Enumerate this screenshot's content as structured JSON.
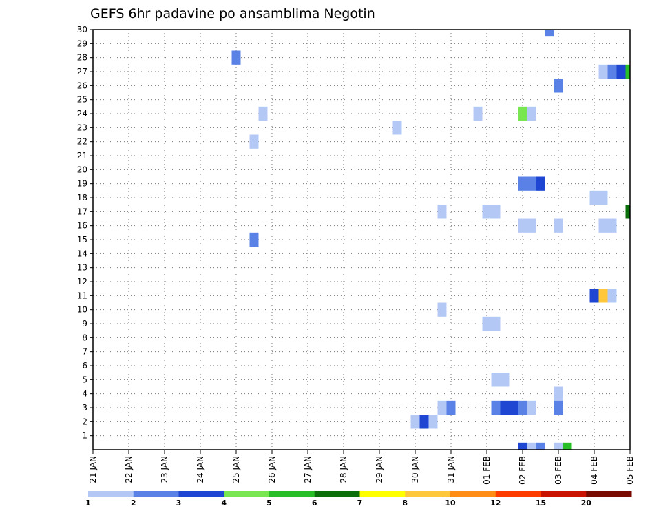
{
  "chart_data": {
    "type": "heatmap",
    "title": "GEFS 6hr padavine po ansamblima Negotin",
    "x_tick_labels": [
      "21 JAN",
      "22 JAN",
      "23 JAN",
      "24 JAN",
      "25 JAN",
      "26 JAN",
      "27 JAN",
      "28 JAN",
      "29 JAN",
      "30 JAN",
      "31 JAN",
      "01 FEB",
      "02 FEB",
      "03 FEB",
      "04 FEB",
      "05 FEB"
    ],
    "y_tick_labels": [
      "1",
      "2",
      "3",
      "4",
      "5",
      "6",
      "7",
      "8",
      "9",
      "10",
      "11",
      "12",
      "13",
      "14",
      "15",
      "16",
      "17",
      "18",
      "19",
      "20",
      "21",
      "22",
      "23",
      "24",
      "25",
      "26",
      "27",
      "28",
      "29",
      "30"
    ],
    "x_range_days": [
      0,
      15
    ],
    "y_range": [
      0,
      30
    ],
    "time_step_hours": 6,
    "grid": "dotted",
    "colorbar": {
      "bounds": [
        "1",
        "2",
        "3",
        "4",
        "5",
        "6",
        "7",
        "8",
        "10",
        "12",
        "15",
        "20"
      ],
      "colors": [
        "#b4c8f5",
        "#5a82e6",
        "#1e46d2",
        "#78e650",
        "#28be28",
        "#0a6e0a",
        "#ffff00",
        "#ffc83c",
        "#ff8c14",
        "#ff3c00",
        "#c81400",
        "#780a00"
      ]
    },
    "cells": [
      {
        "time": "25 JAN 00Z",
        "member": 28,
        "bin": 1
      },
      {
        "time": "25 JAN 12Z",
        "member": 22,
        "bin": 0
      },
      {
        "time": "25 JAN 12Z",
        "member": 15,
        "bin": 1
      },
      {
        "time": "25 JAN 18Z",
        "member": 24,
        "bin": 0
      },
      {
        "time": "29 JAN 12Z",
        "member": 23,
        "bin": 0
      },
      {
        "time": "30 JAN 00Z",
        "member": 2,
        "bin": 0
      },
      {
        "time": "30 JAN 06Z",
        "member": 2,
        "bin": 2
      },
      {
        "time": "30 JAN 12Z",
        "member": 2,
        "bin": 0
      },
      {
        "time": "30 JAN 18Z",
        "member": 17,
        "bin": 0
      },
      {
        "time": "30 JAN 18Z",
        "member": 10,
        "bin": 0
      },
      {
        "time": "30 JAN 18Z",
        "member": 3,
        "bin": 0
      },
      {
        "time": "31 JAN 00Z",
        "member": 3,
        "bin": 1
      },
      {
        "time": "31 JAN 18Z",
        "member": 24,
        "bin": 0
      },
      {
        "time": "01 FEB 00Z",
        "member": 17,
        "bin": 0
      },
      {
        "time": "01 FEB 00Z",
        "member": 9,
        "bin": 0
      },
      {
        "time": "01 FEB 06Z",
        "member": 17,
        "bin": 0
      },
      {
        "time": "01 FEB 06Z",
        "member": 9,
        "bin": 0
      },
      {
        "time": "01 FEB 06Z",
        "member": 5,
        "bin": 0
      },
      {
        "time": "01 FEB 06Z",
        "member": 3,
        "bin": 1
      },
      {
        "time": "01 FEB 12Z",
        "member": 5,
        "bin": 0
      },
      {
        "time": "01 FEB 12Z",
        "member": 3,
        "bin": 2
      },
      {
        "time": "01 FEB 18Z",
        "member": 3,
        "bin": 2
      },
      {
        "time": "02 FEB 00Z",
        "member": 24,
        "bin": 3
      },
      {
        "time": "02 FEB 00Z",
        "member": 19,
        "bin": 1
      },
      {
        "time": "02 FEB 00Z",
        "member": 16,
        "bin": 0
      },
      {
        "time": "02 FEB 00Z",
        "member": 3,
        "bin": 1
      },
      {
        "time": "02 FEB 00Z",
        "member": 0,
        "bin": 2
      },
      {
        "time": "02 FEB 06Z",
        "member": 24,
        "bin": 0
      },
      {
        "time": "02 FEB 06Z",
        "member": 19,
        "bin": 1
      },
      {
        "time": "02 FEB 06Z",
        "member": 16,
        "bin": 0
      },
      {
        "time": "02 FEB 06Z",
        "member": 3,
        "bin": 0
      },
      {
        "time": "02 FEB 06Z",
        "member": 0,
        "bin": 0
      },
      {
        "time": "02 FEB 12Z",
        "member": 19,
        "bin": 2
      },
      {
        "time": "02 FEB 12Z",
        "member": 0,
        "bin": 1
      },
      {
        "time": "02 FEB 18Z",
        "member": 30,
        "bin": 1
      },
      {
        "time": "03 FEB 00Z",
        "member": 26,
        "bin": 1
      },
      {
        "time": "03 FEB 00Z",
        "member": 16,
        "bin": 0
      },
      {
        "time": "03 FEB 00Z",
        "member": 4,
        "bin": 0
      },
      {
        "time": "03 FEB 00Z",
        "member": 3,
        "bin": 1
      },
      {
        "time": "03 FEB 00Z",
        "member": 0,
        "bin": 0
      },
      {
        "time": "03 FEB 06Z",
        "member": 0,
        "bin": 4
      },
      {
        "time": "04 FEB 00Z",
        "member": 18,
        "bin": 0
      },
      {
        "time": "04 FEB 00Z",
        "member": 11,
        "bin": 2
      },
      {
        "time": "04 FEB 06Z",
        "member": 27,
        "bin": 0
      },
      {
        "time": "04 FEB 06Z",
        "member": 18,
        "bin": 0
      },
      {
        "time": "04 FEB 06Z",
        "member": 16,
        "bin": 0
      },
      {
        "time": "04 FEB 06Z",
        "member": 11,
        "bin": 7
      },
      {
        "time": "04 FEB 12Z",
        "member": 27,
        "bin": 1
      },
      {
        "time": "04 FEB 12Z",
        "member": 16,
        "bin": 0
      },
      {
        "time": "04 FEB 12Z",
        "member": 11,
        "bin": 0
      },
      {
        "time": "04 FEB 18Z",
        "member": 27,
        "bin": 2
      },
      {
        "time": "05 FEB 00Z",
        "member": 27,
        "bin": 4
      },
      {
        "time": "05 FEB 00Z",
        "member": 17,
        "bin": 5
      }
    ]
  }
}
